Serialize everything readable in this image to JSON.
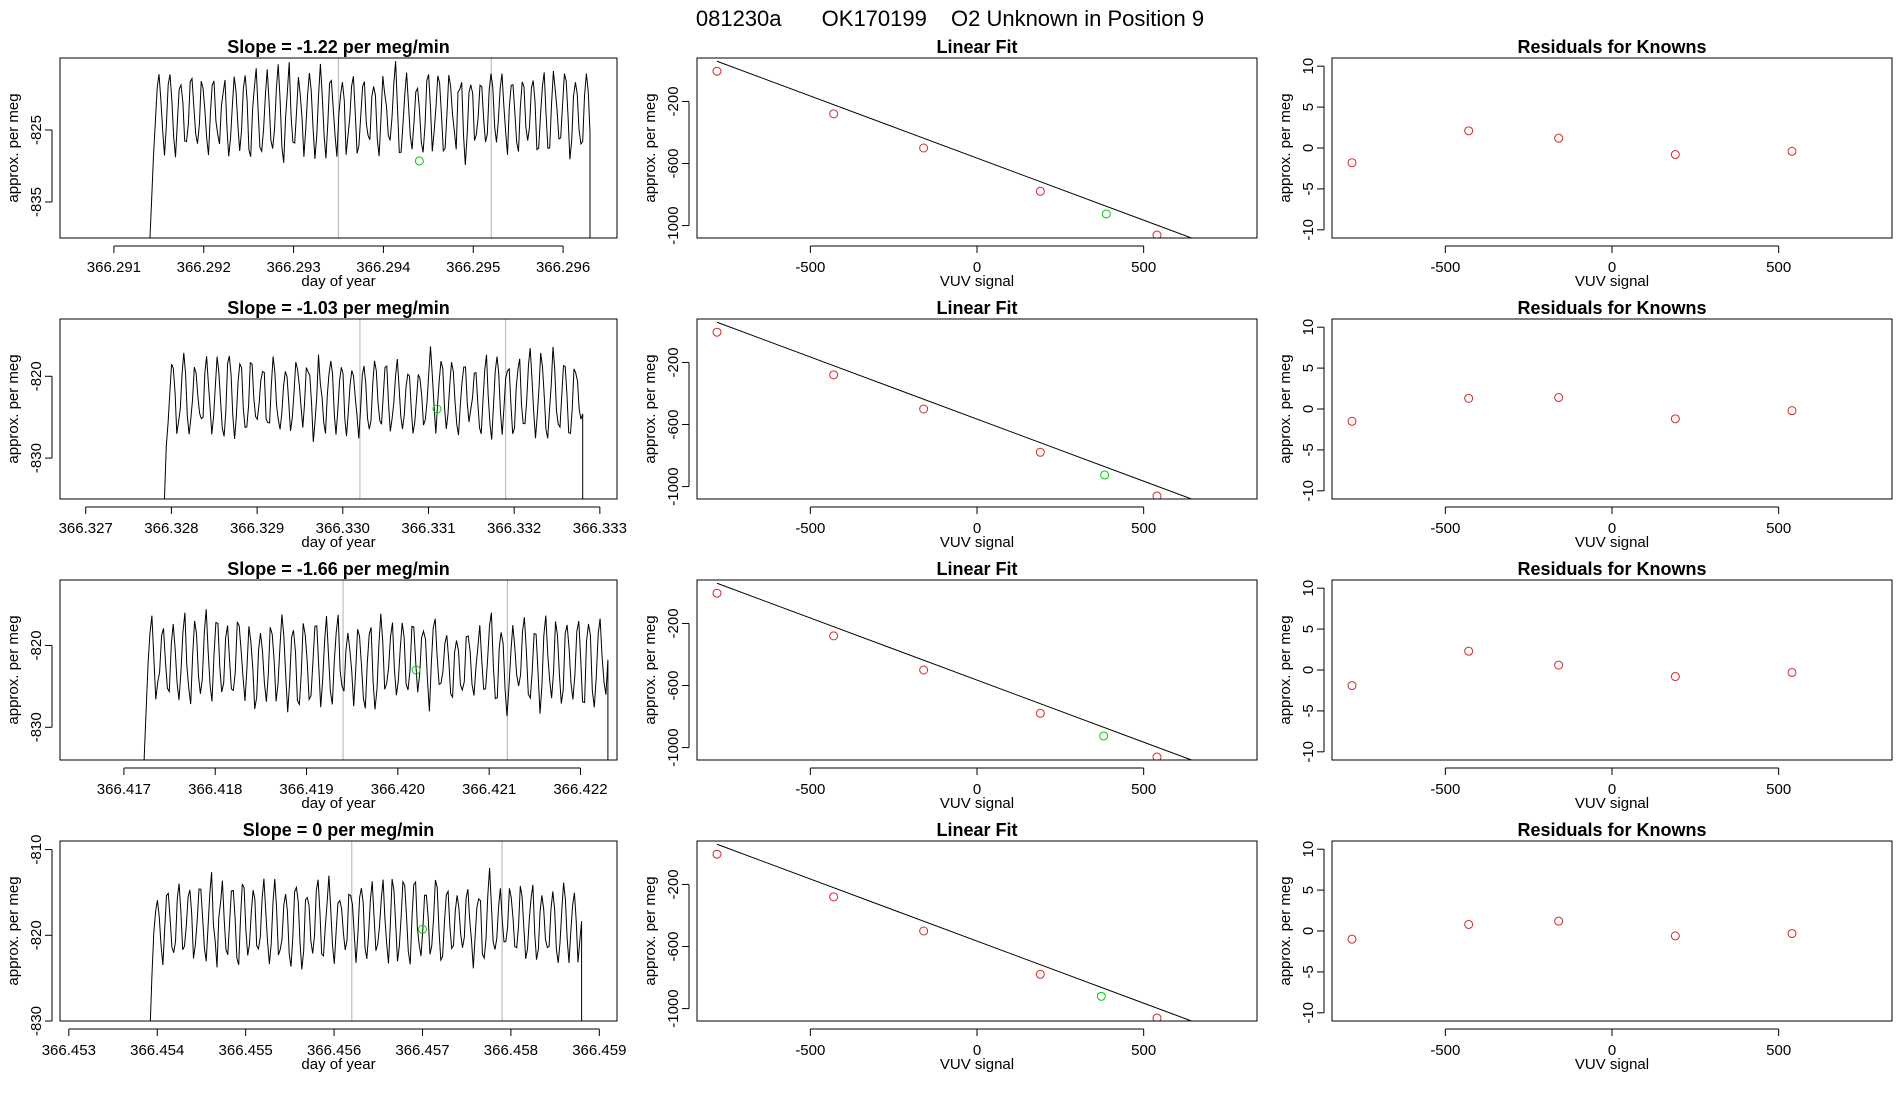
{
  "figure": {
    "title_id": "081230a",
    "title_tank": "OK170199",
    "title_desc": "O2 Unknown in Position  9"
  },
  "colors": {
    "known": "#d62728",
    "unknown": "#00cc00",
    "line": "#000000",
    "vline": "#bfbfbf"
  },
  "chart_data": [
    {
      "type": "line",
      "panel": "timeseries",
      "row": 0,
      "title": "Slope =  -1.22  per meg/min",
      "xlabel": "day of year",
      "ylabel": "approx. per meg",
      "xlim": [
        366.2904,
        366.2966
      ],
      "ylim": [
        -840.0,
        -815.0
      ],
      "xticks": [
        "366.291",
        "366.292",
        "366.293",
        "366.294",
        "366.295",
        "366.296"
      ],
      "xtick_values": [
        366.291,
        366.292,
        366.293,
        366.294,
        366.295,
        366.296
      ],
      "yticks": [
        "-825",
        "-835"
      ],
      "ytick_values": [
        -825,
        -835
      ],
      "vlines": [
        366.2935,
        366.2952
      ],
      "start": 366.2914,
      "end": 366.2963,
      "baseline": -822.5,
      "amp": 6,
      "period": 0.00012,
      "seed": 11,
      "unknown_point": {
        "x": 366.2944,
        "y": -829.3
      }
    },
    {
      "type": "scatter",
      "panel": "linear_fit",
      "row": 0,
      "title": "Linear Fit",
      "xlabel": "VUV signal",
      "ylabel": "approx. per meg",
      "xlim": [
        -840,
        840
      ],
      "ylim": [
        -1080,
        80
      ],
      "xticks": [
        "-500",
        "0",
        "500"
      ],
      "xtick_values": [
        -500,
        0,
        500
      ],
      "yticks": [
        "-200",
        "-600",
        "-1000"
      ],
      "ytick_values": [
        -200,
        -600,
        -1000
      ],
      "fit_line": {
        "slope": -0.8,
        "intercept": -565,
        "x_from": -780,
        "x_to": 730
      },
      "known_points": {
        "x": [
          -780,
          -430,
          -160,
          190,
          540
        ],
        "y": [
          -5,
          -280,
          -500,
          -779,
          -1061
        ]
      },
      "unknown_point": {
        "x": 388,
        "y": -925
      }
    },
    {
      "type": "scatter",
      "panel": "residuals",
      "row": 0,
      "title": "Residuals for Knowns",
      "xlabel": "VUV signal",
      "ylabel": "approx. per meg",
      "xlim": [
        -840,
        840
      ],
      "ylim": [
        -11,
        11
      ],
      "xticks": [
        "-500",
        "0",
        "500"
      ],
      "xtick_values": [
        -500,
        0,
        500
      ],
      "yticks": [
        "-10",
        "-5",
        "0",
        "5",
        "10"
      ],
      "ytick_values": [
        -10,
        -5,
        0,
        5,
        10
      ],
      "known_points": {
        "x": [
          -780,
          -430,
          -160,
          190,
          540
        ],
        "y": [
          -1.8,
          2.1,
          1.2,
          -0.8,
          -0.4
        ]
      }
    },
    {
      "type": "line",
      "panel": "timeseries",
      "row": 1,
      "title": "Slope =  -1.03  per meg/min",
      "xlabel": "day of year",
      "ylabel": "approx. per meg",
      "xlim": [
        366.3267,
        366.3332
      ],
      "ylim": [
        -835.0,
        -813.0
      ],
      "xticks": [
        "366.327",
        "366.328",
        "366.329",
        "366.330",
        "366.331",
        "366.332",
        "366.333"
      ],
      "xtick_values": [
        366.327,
        366.328,
        366.329,
        366.33,
        366.331,
        366.332,
        366.333
      ],
      "yticks": [
        "-820",
        "-830"
      ],
      "ytick_values": [
        -820,
        -830
      ],
      "vlines": [
        366.3302,
        366.3319
      ],
      "start": 366.3279,
      "end": 366.3328,
      "baseline": -822.5,
      "amp": 5,
      "period": 0.00013,
      "seed": 23,
      "unknown_point": {
        "x": 366.3311,
        "y": -824.0
      }
    },
    {
      "type": "scatter",
      "panel": "linear_fit",
      "row": 1,
      "title": "Linear Fit",
      "xlabel": "VUV signal",
      "ylabel": "approx. per meg",
      "xlim": [
        -840,
        840
      ],
      "ylim": [
        -1080,
        80
      ],
      "xticks": [
        "-500",
        "0",
        "500"
      ],
      "xtick_values": [
        -500,
        0,
        500
      ],
      "yticks": [
        "-200",
        "-600",
        "-1000"
      ],
      "ytick_values": [
        -200,
        -600,
        -1000
      ],
      "fit_line": {
        "slope": -0.8,
        "intercept": -565,
        "x_from": -780,
        "x_to": 730
      },
      "known_points": {
        "x": [
          -780,
          -430,
          -160,
          190,
          540
        ],
        "y": [
          -5,
          -280,
          -500,
          -779,
          -1061
        ]
      },
      "unknown_point": {
        "x": 383,
        "y": -925
      }
    },
    {
      "type": "scatter",
      "panel": "residuals",
      "row": 1,
      "title": "Residuals for Knowns",
      "xlabel": "VUV signal",
      "ylabel": "approx. per meg",
      "xlim": [
        -840,
        840
      ],
      "ylim": [
        -11,
        11
      ],
      "xticks": [
        "-500",
        "0",
        "500"
      ],
      "xtick_values": [
        -500,
        0,
        500
      ],
      "yticks": [
        "-10",
        "-5",
        "0",
        "5",
        "10"
      ],
      "ytick_values": [
        -10,
        -5,
        0,
        5,
        10
      ],
      "known_points": {
        "x": [
          -780,
          -430,
          -160,
          190,
          540
        ],
        "y": [
          -1.5,
          1.3,
          1.4,
          -1.2,
          -0.2
        ]
      }
    },
    {
      "type": "line",
      "panel": "timeseries",
      "row": 2,
      "title": "Slope =  -1.66  per meg/min",
      "xlabel": "day of year",
      "ylabel": "approx. per meg",
      "xlim": [
        366.4163,
        366.4224
      ],
      "ylim": [
        -834.0,
        -812.0
      ],
      "xticks": [
        "366.417",
        "366.418",
        "366.419",
        "366.420",
        "366.421",
        "366.422"
      ],
      "xtick_values": [
        366.417,
        366.418,
        366.419,
        366.42,
        366.421,
        366.422
      ],
      "yticks": [
        "-820",
        "-830"
      ],
      "ytick_values": [
        -820,
        -830
      ],
      "vlines": [
        366.4194,
        366.4212
      ],
      "start": 366.4172,
      "end": 366.4223,
      "baseline": -822.0,
      "amp": 5.5,
      "period": 0.00012,
      "seed": 37,
      "unknown_point": {
        "x": 366.4202,
        "y": -823.0
      }
    },
    {
      "type": "scatter",
      "panel": "linear_fit",
      "row": 2,
      "title": "Linear Fit",
      "xlabel": "VUV signal",
      "ylabel": "approx. per meg",
      "xlim": [
        -840,
        840
      ],
      "ylim": [
        -1080,
        80
      ],
      "xticks": [
        "-500",
        "0",
        "500"
      ],
      "xtick_values": [
        -500,
        0,
        500
      ],
      "yticks": [
        "-200",
        "-600",
        "-1000"
      ],
      "ytick_values": [
        -200,
        -600,
        -1000
      ],
      "fit_line": {
        "slope": -0.8,
        "intercept": -565,
        "x_from": -780,
        "x_to": 730
      },
      "known_points": {
        "x": [
          -780,
          -430,
          -160,
          190,
          540
        ],
        "y": [
          -5,
          -280,
          -500,
          -779,
          -1061
        ]
      },
      "unknown_point": {
        "x": 380,
        "y": -925
      }
    },
    {
      "type": "scatter",
      "panel": "residuals",
      "row": 2,
      "title": "Residuals for Knowns",
      "xlabel": "VUV signal",
      "ylabel": "approx. per meg",
      "xlim": [
        -840,
        840
      ],
      "ylim": [
        -11,
        11
      ],
      "xticks": [
        "-500",
        "0",
        "500"
      ],
      "xtick_values": [
        -500,
        0,
        500
      ],
      "yticks": [
        "-10",
        "-5",
        "0",
        "5",
        "10"
      ],
      "ytick_values": [
        -10,
        -5,
        0,
        5,
        10
      ],
      "known_points": {
        "x": [
          -780,
          -430,
          -160,
          190,
          540
        ],
        "y": [
          -1.9,
          2.3,
          0.6,
          -0.8,
          -0.3
        ]
      }
    },
    {
      "type": "line",
      "panel": "timeseries",
      "row": 3,
      "title": "Slope =  0  per meg/min",
      "xlabel": "day of year",
      "ylabel": "approx. per meg",
      "xlim": [
        366.4529,
        366.4592
      ],
      "ylim": [
        -830.0,
        -809.0
      ],
      "xticks": [
        "366.453",
        "366.454",
        "366.455",
        "366.456",
        "366.457",
        "366.458",
        "366.459"
      ],
      "xtick_values": [
        366.453,
        366.454,
        366.455,
        366.456,
        366.457,
        366.458,
        366.459
      ],
      "yticks": [
        "-810",
        "-820",
        "-830"
      ],
      "ytick_values": [
        -810,
        -820,
        -830
      ],
      "vlines": [
        366.4562,
        366.4579
      ],
      "start": 366.4539,
      "end": 366.4588,
      "baseline": -818.5,
      "amp": 5,
      "period": 0.00012,
      "seed": 53,
      "unknown_point": {
        "x": 366.457,
        "y": -819.3
      }
    },
    {
      "type": "scatter",
      "panel": "linear_fit",
      "row": 3,
      "title": "Linear Fit",
      "xlabel": "VUV signal",
      "ylabel": "approx. per meg",
      "xlim": [
        -840,
        840
      ],
      "ylim": [
        -1080,
        80
      ],
      "xticks": [
        "-500",
        "0",
        "500"
      ],
      "xtick_values": [
        -500,
        0,
        500
      ],
      "yticks": [
        "-200",
        "-600",
        "-1000"
      ],
      "ytick_values": [
        -200,
        -600,
        -1000
      ],
      "fit_line": {
        "slope": -0.8,
        "intercept": -565,
        "x_from": -780,
        "x_to": 730
      },
      "known_points": {
        "x": [
          -780,
          -430,
          -160,
          190,
          540
        ],
        "y": [
          -5,
          -280,
          -500,
          -779,
          -1061
        ]
      },
      "unknown_point": {
        "x": 373,
        "y": -921
      }
    },
    {
      "type": "scatter",
      "panel": "residuals",
      "row": 3,
      "title": "Residuals for Knowns",
      "xlabel": "VUV signal",
      "ylabel": "approx. per meg",
      "xlim": [
        -840,
        840
      ],
      "ylim": [
        -11,
        11
      ],
      "xticks": [
        "-500",
        "0",
        "500"
      ],
      "xtick_values": [
        -500,
        0,
        500
      ],
      "yticks": [
        "-10",
        "-5",
        "0",
        "5",
        "10"
      ],
      "ytick_values": [
        -10,
        -5,
        0,
        5,
        10
      ],
      "known_points": {
        "x": [
          -780,
          -430,
          -160,
          190,
          540
        ],
        "y": [
          -1.0,
          0.8,
          1.2,
          -0.6,
          -0.3
        ]
      }
    }
  ]
}
